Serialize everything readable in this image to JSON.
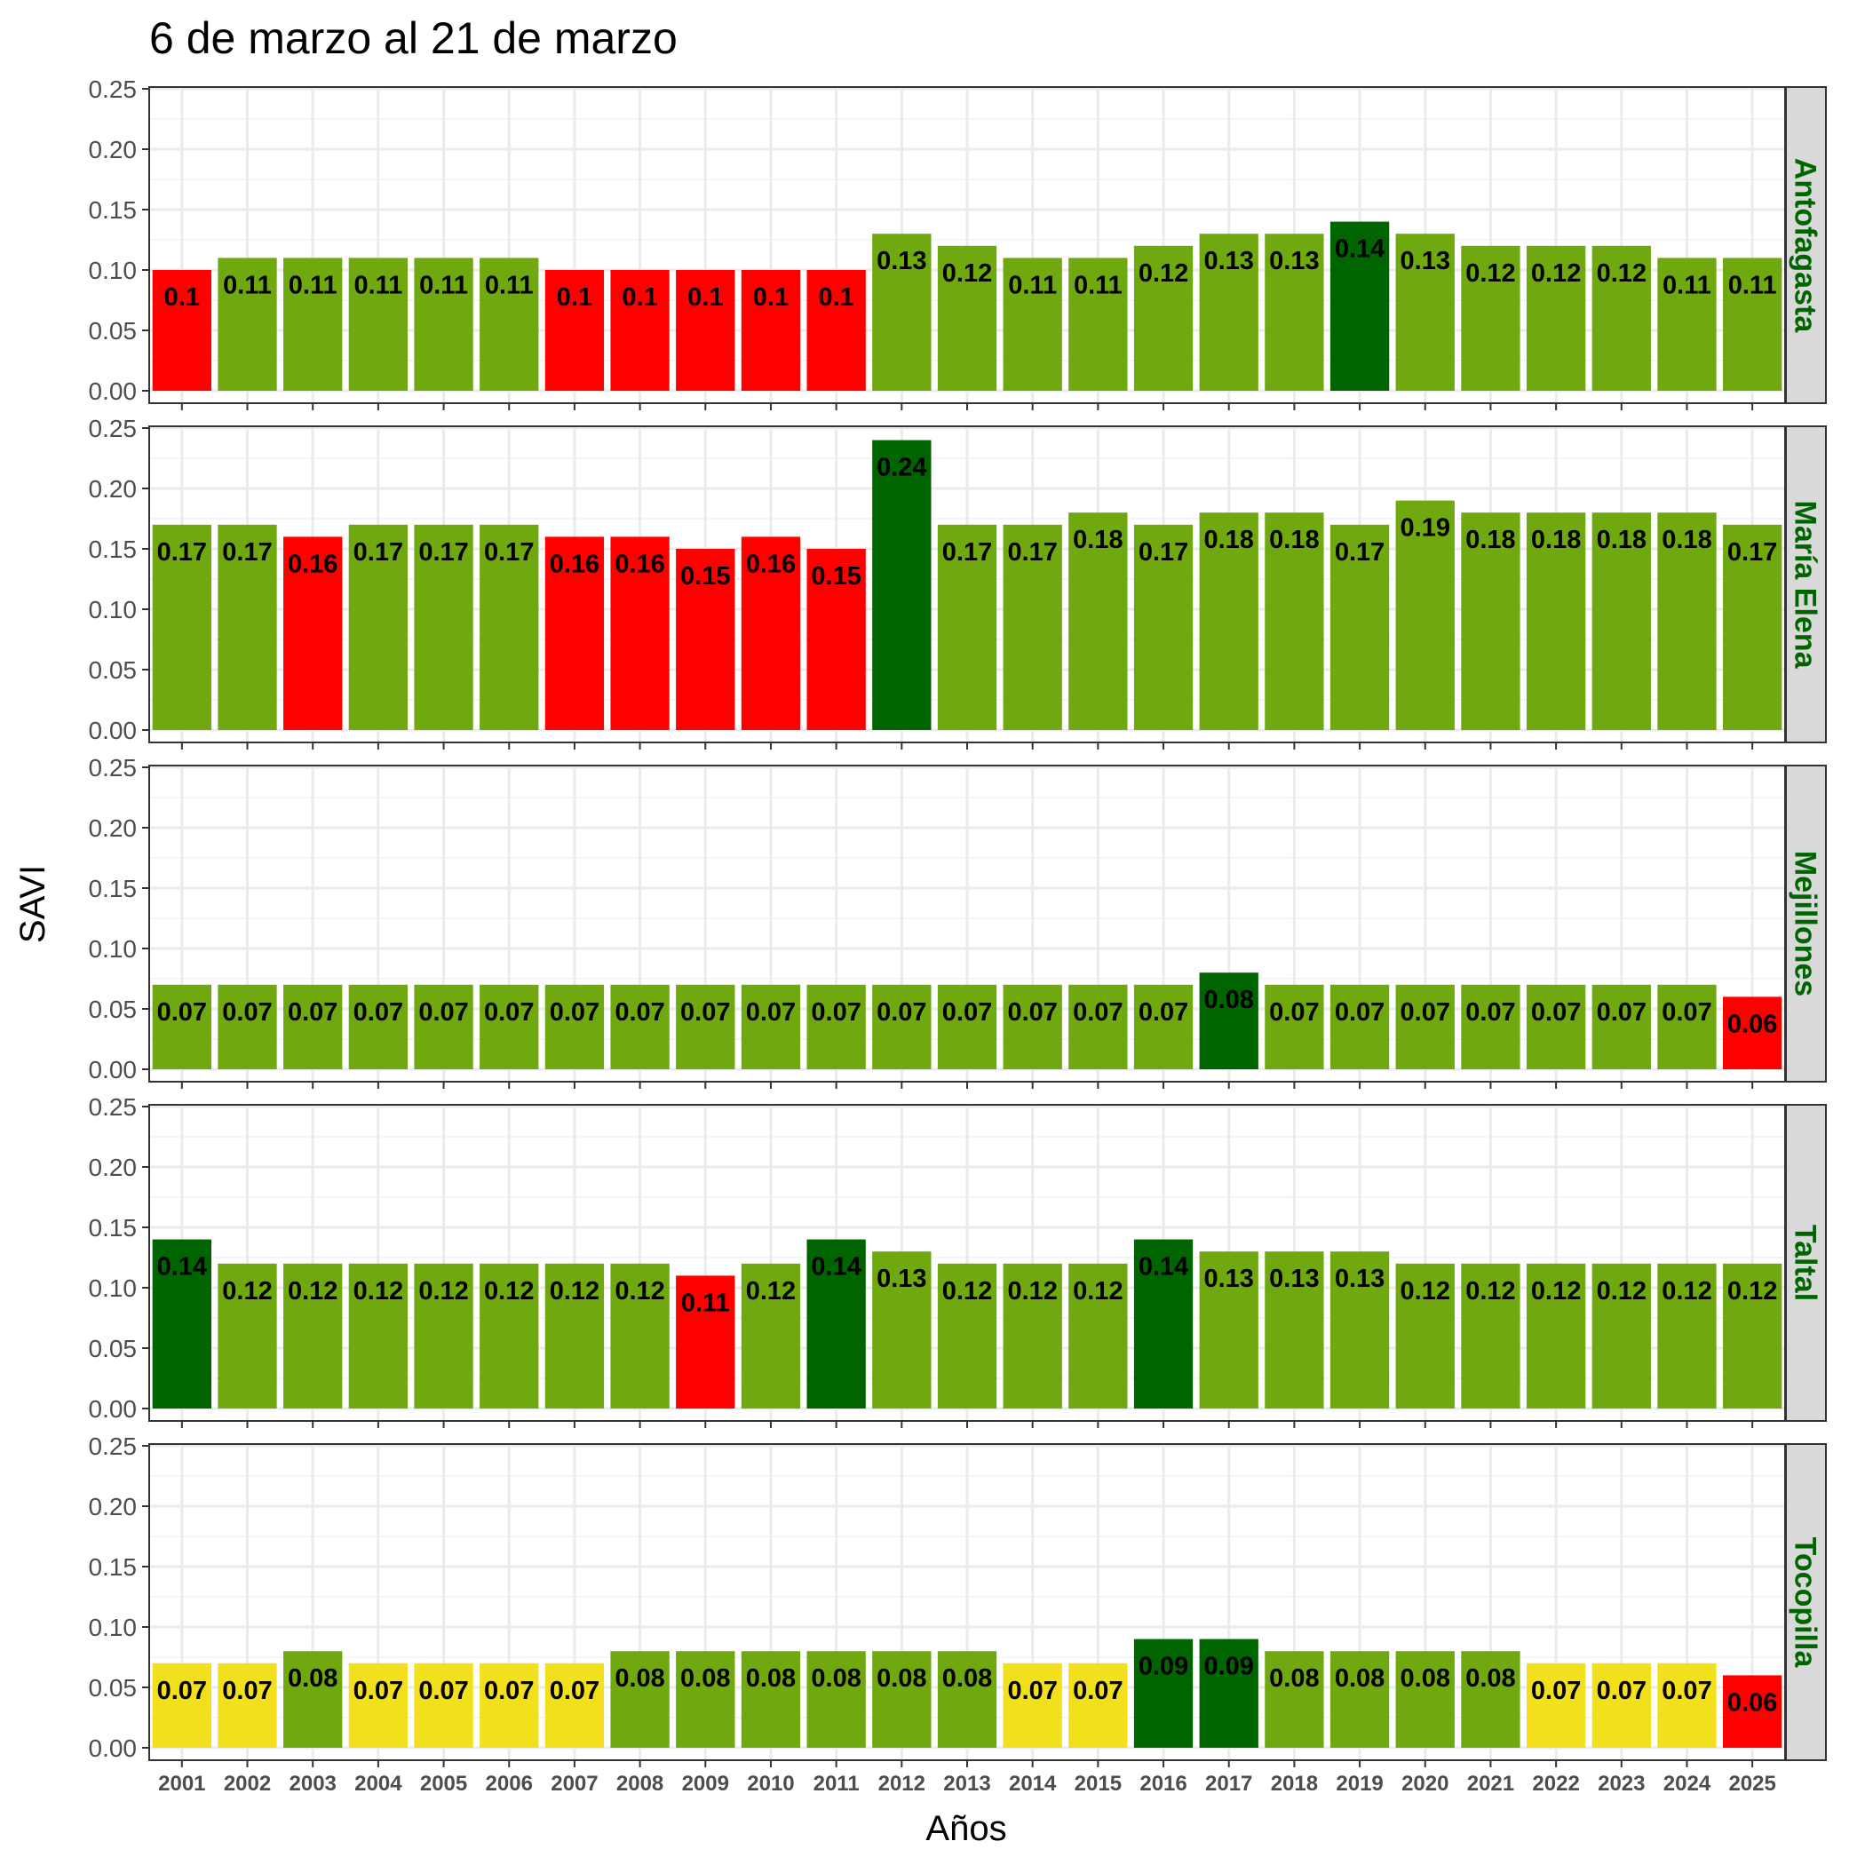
{
  "chart_data": {
    "type": "bar",
    "title": "6 de marzo al 21 de marzo",
    "xlabel": "Años",
    "ylabel": "SAVI",
    "ylim": [
      0,
      0.25
    ],
    "yticks": [
      "0.00",
      "0.05",
      "0.10",
      "0.15",
      "0.20",
      "0.25"
    ],
    "categories": [
      "2001",
      "2002",
      "2003",
      "2004",
      "2005",
      "2006",
      "2007",
      "2008",
      "2009",
      "2010",
      "2011",
      "2012",
      "2013",
      "2014",
      "2015",
      "2016",
      "2017",
      "2018",
      "2019",
      "2020",
      "2021",
      "2022",
      "2023",
      "2024",
      "2025"
    ],
    "colors": {
      "red": "#ff0000",
      "green": "#6fa80f",
      "dark_green": "#006400",
      "yellow": "#f2e01c"
    },
    "strip_text_color": "#006400",
    "panels": [
      {
        "name": "Antofagasta",
        "values": [
          0.1,
          0.11,
          0.11,
          0.11,
          0.11,
          0.11,
          0.1,
          0.1,
          0.1,
          0.1,
          0.1,
          0.13,
          0.12,
          0.11,
          0.11,
          0.12,
          0.13,
          0.13,
          0.14,
          0.13,
          0.12,
          0.12,
          0.12,
          0.11,
          0.11
        ],
        "labels": [
          "0.1",
          "0.11",
          "0.11",
          "0.11",
          "0.11",
          "0.11",
          "0.1",
          "0.1",
          "0.1",
          "0.1",
          "0.1",
          "0.13",
          "0.12",
          "0.11",
          "0.11",
          "0.12",
          "0.13",
          "0.13",
          "0.14",
          "0.13",
          "0.12",
          "0.12",
          "0.12",
          "0.11",
          "0.11"
        ],
        "bar_colors": [
          "red",
          "green",
          "green",
          "green",
          "green",
          "green",
          "red",
          "red",
          "red",
          "red",
          "red",
          "green",
          "green",
          "green",
          "green",
          "green",
          "green",
          "green",
          "dark_green",
          "green",
          "green",
          "green",
          "green",
          "green",
          "green"
        ]
      },
      {
        "name": "María Elena",
        "values": [
          0.17,
          0.17,
          0.16,
          0.17,
          0.17,
          0.17,
          0.16,
          0.16,
          0.15,
          0.16,
          0.15,
          0.24,
          0.17,
          0.17,
          0.18,
          0.17,
          0.18,
          0.18,
          0.17,
          0.19,
          0.18,
          0.18,
          0.18,
          0.18,
          0.17
        ],
        "labels": [
          "0.17",
          "0.17",
          "0.16",
          "0.17",
          "0.17",
          "0.17",
          "0.16",
          "0.16",
          "0.15",
          "0.16",
          "0.15",
          "0.24",
          "0.17",
          "0.17",
          "0.18",
          "0.17",
          "0.18",
          "0.18",
          "0.17",
          "0.19",
          "0.18",
          "0.18",
          "0.18",
          "0.18",
          "0.17"
        ],
        "bar_colors": [
          "green",
          "green",
          "red",
          "green",
          "green",
          "green",
          "red",
          "red",
          "red",
          "red",
          "red",
          "dark_green",
          "green",
          "green",
          "green",
          "green",
          "green",
          "green",
          "green",
          "green",
          "green",
          "green",
          "green",
          "green",
          "green"
        ]
      },
      {
        "name": "Mejillones",
        "values": [
          0.07,
          0.07,
          0.07,
          0.07,
          0.07,
          0.07,
          0.07,
          0.07,
          0.07,
          0.07,
          0.07,
          0.07,
          0.07,
          0.07,
          0.07,
          0.07,
          0.08,
          0.07,
          0.07,
          0.07,
          0.07,
          0.07,
          0.07,
          0.07,
          0.06
        ],
        "labels": [
          "0.07",
          "0.07",
          "0.07",
          "0.07",
          "0.07",
          "0.07",
          "0.07",
          "0.07",
          "0.07",
          "0.07",
          "0.07",
          "0.07",
          "0.07",
          "0.07",
          "0.07",
          "0.07",
          "0.08",
          "0.07",
          "0.07",
          "0.07",
          "0.07",
          "0.07",
          "0.07",
          "0.07",
          "0.06"
        ],
        "bar_colors": [
          "green",
          "green",
          "green",
          "green",
          "green",
          "green",
          "green",
          "green",
          "green",
          "green",
          "green",
          "green",
          "green",
          "green",
          "green",
          "green",
          "dark_green",
          "green",
          "green",
          "green",
          "green",
          "green",
          "green",
          "green",
          "red"
        ]
      },
      {
        "name": "Taltal",
        "values": [
          0.14,
          0.12,
          0.12,
          0.12,
          0.12,
          0.12,
          0.12,
          0.12,
          0.11,
          0.12,
          0.14,
          0.13,
          0.12,
          0.12,
          0.12,
          0.14,
          0.13,
          0.13,
          0.13,
          0.12,
          0.12,
          0.12,
          0.12,
          0.12,
          0.12
        ],
        "labels": [
          "0.14",
          "0.12",
          "0.12",
          "0.12",
          "0.12",
          "0.12",
          "0.12",
          "0.12",
          "0.11",
          "0.12",
          "0.14",
          "0.13",
          "0.12",
          "0.12",
          "0.12",
          "0.14",
          "0.13",
          "0.13",
          "0.13",
          "0.12",
          "0.12",
          "0.12",
          "0.12",
          "0.12",
          "0.12"
        ],
        "bar_colors": [
          "dark_green",
          "green",
          "green",
          "green",
          "green",
          "green",
          "green",
          "green",
          "red",
          "green",
          "dark_green",
          "green",
          "green",
          "green",
          "green",
          "dark_green",
          "green",
          "green",
          "green",
          "green",
          "green",
          "green",
          "green",
          "green",
          "green"
        ]
      },
      {
        "name": "Tocopilla",
        "values": [
          0.07,
          0.07,
          0.08,
          0.07,
          0.07,
          0.07,
          0.07,
          0.08,
          0.08,
          0.08,
          0.08,
          0.08,
          0.08,
          0.07,
          0.07,
          0.09,
          0.09,
          0.08,
          0.08,
          0.08,
          0.08,
          0.07,
          0.07,
          0.07,
          0.06
        ],
        "labels": [
          "0.07",
          "0.07",
          "0.08",
          "0.07",
          "0.07",
          "0.07",
          "0.07",
          "0.08",
          "0.08",
          "0.08",
          "0.08",
          "0.08",
          "0.08",
          "0.07",
          "0.07",
          "0.09",
          "0.09",
          "0.08",
          "0.08",
          "0.08",
          "0.08",
          "0.07",
          "0.07",
          "0.07",
          "0.06"
        ],
        "bar_colors": [
          "yellow",
          "yellow",
          "green",
          "yellow",
          "yellow",
          "yellow",
          "yellow",
          "green",
          "green",
          "green",
          "green",
          "green",
          "green",
          "yellow",
          "yellow",
          "dark_green",
          "dark_green",
          "green",
          "green",
          "green",
          "green",
          "yellow",
          "yellow",
          "yellow",
          "red"
        ]
      }
    ]
  }
}
